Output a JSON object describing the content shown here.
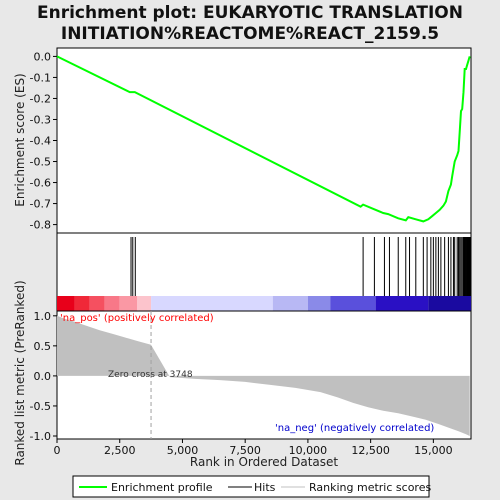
{
  "title_line1": "Enrichment plot: EUKARYOTIC TRANSLATION",
  "title_line2": "INITIATION%REACTOME%REACT_2159.5",
  "colors": {
    "enrichment_line": "#00ff00",
    "hits": "#000000",
    "metric_fill": "#c0c0c0",
    "pos_label": "#ff0000",
    "neg_label": "#0000cc",
    "zero_line": "#a0a0a0"
  },
  "chart_data": {
    "type": "line",
    "n_genes": 16500,
    "top_panel": {
      "ylabel": "Enrichment score (ES)",
      "ylim": [
        -0.84,
        0.04
      ],
      "yticks": [
        "0.0",
        "-0.1",
        "-0.2",
        "-0.3",
        "-0.4",
        "-0.5",
        "-0.6",
        "-0.7",
        "-0.8"
      ],
      "ytick_values": [
        0.0,
        -0.1,
        -0.2,
        -0.3,
        -0.4,
        -0.5,
        -0.6,
        -0.7,
        -0.8
      ],
      "es_curve": {
        "x": [
          0,
          2900,
          3100,
          12100,
          12200,
          12600,
          13000,
          13200,
          13600,
          13900,
          14000,
          14300,
          14600,
          14800,
          14950,
          15100,
          15250,
          15400,
          15500,
          15600,
          15700,
          15750,
          15850,
          15950,
          16000,
          16050,
          16100,
          16150,
          16200,
          16250,
          16300,
          16350,
          16400,
          16450
        ],
        "y": [
          0.0,
          -0.17,
          -0.17,
          -0.715,
          -0.705,
          -0.725,
          -0.745,
          -0.75,
          -0.77,
          -0.78,
          -0.765,
          -0.775,
          -0.785,
          -0.775,
          -0.76,
          -0.745,
          -0.73,
          -0.71,
          -0.69,
          -0.64,
          -0.61,
          -0.57,
          -0.5,
          -0.47,
          -0.45,
          -0.36,
          -0.26,
          -0.25,
          -0.17,
          -0.06,
          -0.06,
          -0.04,
          -0.02,
          0.0
        ]
      }
    },
    "hits": [
      2950,
      3020,
      3120,
      12200,
      12650,
      13050,
      13250,
      13600,
      13900,
      14050,
      14300,
      14600,
      14750,
      14900,
      15000,
      15100,
      15200,
      15300,
      15450,
      15600,
      15700,
      15800,
      15850,
      15950,
      16000,
      16050,
      16100,
      16150,
      16200,
      16230,
      16260,
      16290,
      16320,
      16350,
      16380,
      16400,
      16430,
      16460
    ],
    "bottom_panel": {
      "ylabel": "Ranked list metric (PreRanked)",
      "xlabel": "Rank in Ordered Dataset",
      "ylim": [
        -1.05,
        1.08
      ],
      "yticks": [
        "1.0",
        "0.5",
        "0.0",
        "-0.5",
        "-1.0"
      ],
      "ytick_values": [
        1.0,
        0.5,
        0.0,
        -0.5,
        -1.0
      ],
      "xticks": [
        "0",
        "2,500",
        "5,000",
        "7,500",
        "10,000",
        "12,500",
        "15,000"
      ],
      "xtick_values": [
        0,
        2500,
        5000,
        7500,
        10000,
        12500,
        15000
      ],
      "metric_curve": {
        "x": [
          0,
          300,
          700,
          1200,
          1700,
          2200,
          2700,
          3200,
          3748,
          4500,
          5500,
          6500,
          7500,
          8500,
          9500,
          10500,
          11200,
          11800,
          12400,
          13000,
          13600,
          14200,
          14700,
          15200,
          15600,
          16000,
          16300,
          16450
        ],
        "y": [
          1.0,
          0.95,
          0.9,
          0.83,
          0.76,
          0.7,
          0.64,
          0.58,
          0.52,
          -0.02,
          -0.05,
          -0.07,
          -0.1,
          -0.15,
          -0.2,
          -0.27,
          -0.36,
          -0.45,
          -0.52,
          -0.58,
          -0.62,
          -0.68,
          -0.73,
          -0.8,
          -0.86,
          -0.92,
          -0.97,
          -1.0
        ]
      },
      "zero_cross": 3748,
      "zero_cross_label": "Zero cross at 3748",
      "pos_label": "'na_pos' (positively correlated)",
      "neg_label": "'na_neg' (negatively correlated)"
    },
    "legend": [
      "Enrichment profile",
      "Hits",
      "Ranking metric scores"
    ]
  }
}
